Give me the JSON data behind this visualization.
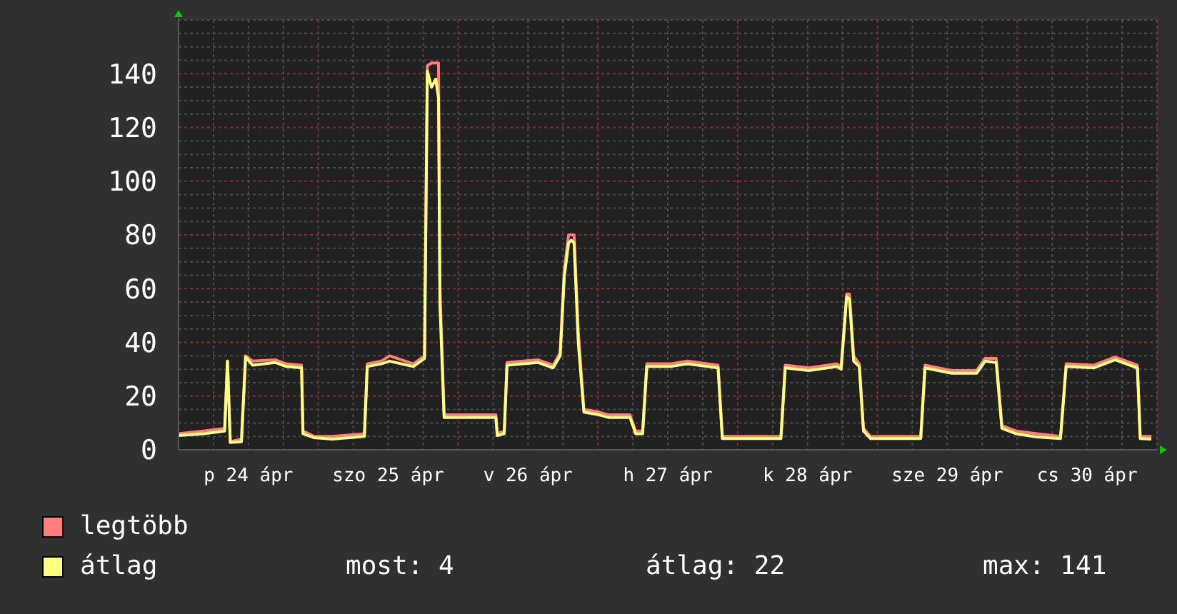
{
  "chart_data": {
    "type": "line",
    "x": [
      "--04-24T00:00",
      "--04-24T04:19",
      "--04-24T07:55",
      "--04-24T08:24",
      "--04-24T08:53",
      "--04-24T10:48",
      "--04-24T11:31",
      "--04-24T12:43",
      "--04-24T16:34",
      "--04-24T18:29",
      "--04-24T21:07",
      "--04-24T21:22",
      "--04-24T23:17",
      "--04-25T02:24",
      "--04-25T07:55",
      "--04-25T08:24",
      "--04-25T10:48",
      "--04-25T12:14",
      "--04-25T16:19",
      "--04-25T18:14",
      "--04-25T18:43",
      "--04-25T19:26",
      "--04-25T20:10",
      "--04-25T20:38",
      "--04-25T20:53",
      "--04-25T21:36",
      "--04-26T06:29",
      "--04-26T06:43",
      "--04-26T07:55",
      "--04-26T08:24",
      "--04-26T13:41",
      "--04-26T16:19",
      "--04-26T17:31",
      "--04-26T18:14",
      "--04-26T18:58",
      "--04-26T19:26",
      "--04-26T19:55",
      "--04-26T20:38",
      "--04-26T21:36",
      "--04-27T00:14",
      "--04-27T01:55",
      "--04-27T05:31",
      "--04-27T06:29",
      "--04-27T07:41",
      "--04-27T08:24",
      "--04-27T12:29",
      "--04-27T15:22",
      "--04-27T20:38",
      "--04-27T21:22",
      "--04-28T07:26",
      "--04-28T08:10",
      "--04-28T12:14",
      "--04-28T17:02",
      "--04-28T17:46",
      "--04-28T18:43",
      "--04-28T19:12",
      "--04-28T19:55",
      "--04-28T20:53",
      "--04-28T21:36",
      "--04-28T22:48",
      "--04-29T07:26",
      "--04-29T08:10",
      "--04-29T12:43",
      "--04-29T17:02",
      "--04-29T18:29",
      "--04-29T20:24",
      "--04-29T21:22",
      "--04-29T23:46",
      "--04-30T03:22",
      "--04-30T07:26",
      "--04-30T08:24",
      "--04-30T13:12",
      "--04-30T16:48",
      "--04-30T20:38",
      "--04-30T21:07",
      "--04-30T23:02"
    ],
    "series": [
      {
        "name": "legtöbb",
        "color": "#ff7f7f",
        "values": [
          6,
          7,
          8,
          33,
          3,
          4,
          35,
          33,
          33.5,
          32,
          31.5,
          7,
          5,
          5,
          6,
          32,
          33,
          35,
          32,
          35,
          143,
          144,
          144,
          144,
          60,
          13,
          13,
          6,
          7,
          32.5,
          33.5,
          31.5,
          36,
          67,
          80,
          80,
          80,
          44,
          15,
          14,
          13,
          13,
          7,
          7,
          32,
          32,
          33,
          31.5,
          5,
          5,
          31.5,
          30.5,
          32,
          31,
          58,
          58,
          35,
          32,
          8,
          5,
          5,
          31.5,
          29.5,
          29.5,
          34,
          34,
          9,
          7,
          6,
          5,
          32,
          31.5,
          34.5,
          31.5,
          5,
          5
        ]
      },
      {
        "name": "átlag",
        "color": "#ffff7f",
        "values": [
          5.3,
          6,
          7,
          33,
          2.7,
          3,
          34.5,
          31.5,
          32.5,
          31,
          30.5,
          6,
          4.5,
          4,
          5,
          31,
          32,
          33,
          31,
          34,
          141,
          135,
          138,
          131,
          54,
          12,
          12,
          5.3,
          6,
          31.5,
          32.5,
          30.5,
          35,
          64.5,
          77,
          78,
          77,
          40,
          14,
          13,
          12,
          12,
          6,
          6,
          31,
          31,
          32,
          30.5,
          4.2,
          4.2,
          30.5,
          29.5,
          31,
          30,
          57,
          56,
          33,
          31,
          7,
          4.2,
          4.2,
          30.5,
          28.5,
          28.5,
          33,
          32.5,
          8,
          6,
          4.8,
          4.2,
          31,
          30.5,
          33.5,
          30.5,
          4.2,
          4
        ]
      }
    ],
    "xlim": [
      "--04-24",
      "--05-01"
    ],
    "xticks": [
      {
        "value": "--04-24T12:00",
        "label": "p 24 ápr"
      },
      {
        "value": "--04-25T12:00",
        "label": "szo 25 ápr"
      },
      {
        "value": "--04-26T12:00",
        "label": "v 26 ápr"
      },
      {
        "value": "--04-27T12:00",
        "label": "h 27 ápr"
      },
      {
        "value": "--04-28T12:00",
        "label": "k 28 ápr"
      },
      {
        "value": "--04-29T12:00",
        "label": "sze 29 ápr"
      },
      {
        "value": "--04-30T12:00",
        "label": "cs 30 ápr"
      }
    ],
    "ylim": [
      0,
      160
    ],
    "yticks": [
      0,
      20,
      40,
      60,
      80,
      100,
      120,
      140
    ],
    "grid": true,
    "legend": "bottom left",
    "annotations": [
      "most: 4",
      "átlag: 22",
      "max: 141"
    ]
  }
}
